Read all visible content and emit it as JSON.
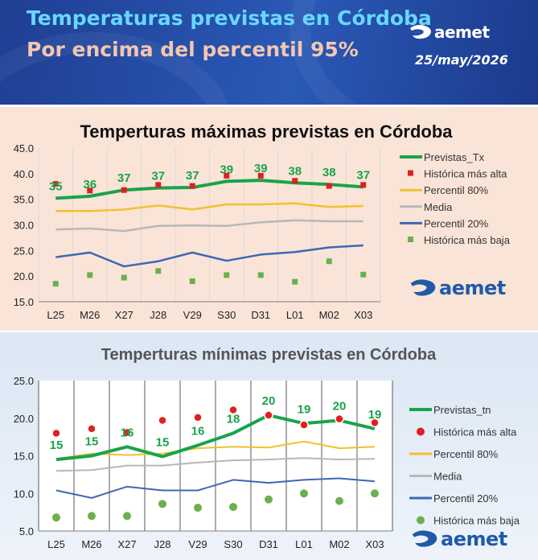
{
  "header": {
    "title_line1": "Temperaturas previstas en Córdoba",
    "title_line2": "Por encima del percentil 95%",
    "date": "25/may/2026",
    "logo_text": "aemet"
  },
  "colors": {
    "header_bg": "#2a59b6",
    "title1": "#66d9ff",
    "title2": "#f4c7b0",
    "max_panel_bg": "#fae4d8",
    "min_panel_bg": "#dde8f5",
    "forecast": "#1aa34a",
    "record_high": "#e02020",
    "p80": "#f2c12e",
    "media": "#b8b8b8",
    "p20": "#3c68b4",
    "record_low": "#6ab04c",
    "logo_blue": "#1f5aa8"
  },
  "chart_data": [
    {
      "type": "line",
      "title": "Temperturas máximas previstas en Córdoba",
      "categories": [
        "L25",
        "M26",
        "X27",
        "J28",
        "V29",
        "S30",
        "D31",
        "L01",
        "M02",
        "X03"
      ],
      "ylim": [
        15,
        45
      ],
      "yticks": [
        "15.0",
        "20.0",
        "25.0",
        "30.0",
        "35.0",
        "40.0",
        "45.0"
      ],
      "grid": "vertical",
      "legend_position": "right",
      "series": [
        {
          "name": "Previstas_Tx",
          "style": "line",
          "values": [
            35.2,
            35.6,
            36.8,
            37.2,
            37.3,
            38.5,
            38.7,
            38.2,
            37.9,
            37.4
          ],
          "labels": [
            "35",
            "36",
            "37",
            "37",
            "37",
            "39",
            "39",
            "38",
            "38",
            "37"
          ]
        },
        {
          "name": "Histórica más alta",
          "style": "square-marker",
          "values": [
            38.0,
            36.7,
            36.8,
            37.8,
            37.6,
            39.6,
            39.6,
            38.6,
            37.6,
            37.8
          ]
        },
        {
          "name": "Percentil 80%",
          "style": "line",
          "values": [
            32.7,
            32.7,
            33.0,
            33.8,
            33.0,
            34.0,
            34.0,
            34.2,
            33.5,
            33.7
          ]
        },
        {
          "name": "Media",
          "style": "line",
          "values": [
            29.1,
            29.3,
            28.8,
            29.8,
            29.9,
            29.8,
            30.5,
            30.9,
            30.7,
            30.7
          ]
        },
        {
          "name": "Percentil 20%",
          "style": "line",
          "values": [
            23.7,
            24.6,
            21.9,
            22.9,
            24.6,
            23.0,
            24.2,
            24.7,
            25.6,
            26.0
          ]
        },
        {
          "name": "Histórica más baja",
          "style": "square-marker",
          "values": [
            18.5,
            20.2,
            19.7,
            21.0,
            19.0,
            20.2,
            20.2,
            18.9,
            22.9,
            20.3
          ]
        }
      ]
    },
    {
      "type": "line",
      "title": "Temperturas mínimas previstas en Córdoba",
      "categories": [
        "L25",
        "M26",
        "X27",
        "J28",
        "V29",
        "S30",
        "D31",
        "L01",
        "M02",
        "X03"
      ],
      "ylim": [
        5,
        25
      ],
      "yticks": [
        "5.0",
        "10.0",
        "15.0",
        "20.0",
        "25.0"
      ],
      "grid": "vertical",
      "legend_position": "right",
      "series": [
        {
          "name": "Previstas_tn",
          "style": "line",
          "values": [
            14.5,
            15.0,
            16.2,
            14.9,
            16.4,
            18.0,
            20.4,
            19.3,
            19.7,
            18.6
          ],
          "labels": [
            "15",
            "15",
            "16",
            "15",
            "16",
            "18",
            "20",
            "19",
            "20",
            "19"
          ]
        },
        {
          "name": "Histórica más alta",
          "style": "circle-marker",
          "values": [
            18.0,
            18.6,
            18.1,
            19.7,
            20.1,
            21.1,
            20.4,
            19.1,
            19.9,
            19.4
          ]
        },
        {
          "name": "Percentil 80%",
          "style": "line",
          "values": [
            14.6,
            15.3,
            15.1,
            15.3,
            16.0,
            16.2,
            16.1,
            16.9,
            16.0,
            16.2
          ]
        },
        {
          "name": "Media",
          "style": "line",
          "values": [
            13.0,
            13.1,
            13.7,
            13.7,
            14.1,
            14.4,
            14.5,
            14.7,
            14.5,
            14.6
          ]
        },
        {
          "name": "Percentil 20%",
          "style": "line",
          "values": [
            10.4,
            9.4,
            10.9,
            10.4,
            10.4,
            11.8,
            11.4,
            11.8,
            12.0,
            11.6
          ]
        },
        {
          "name": "Histórica más baja",
          "style": "circle-marker",
          "values": [
            6.8,
            7.0,
            7.0,
            8.6,
            8.1,
            8.2,
            9.2,
            10.0,
            9.0,
            10.0
          ]
        }
      ]
    }
  ]
}
